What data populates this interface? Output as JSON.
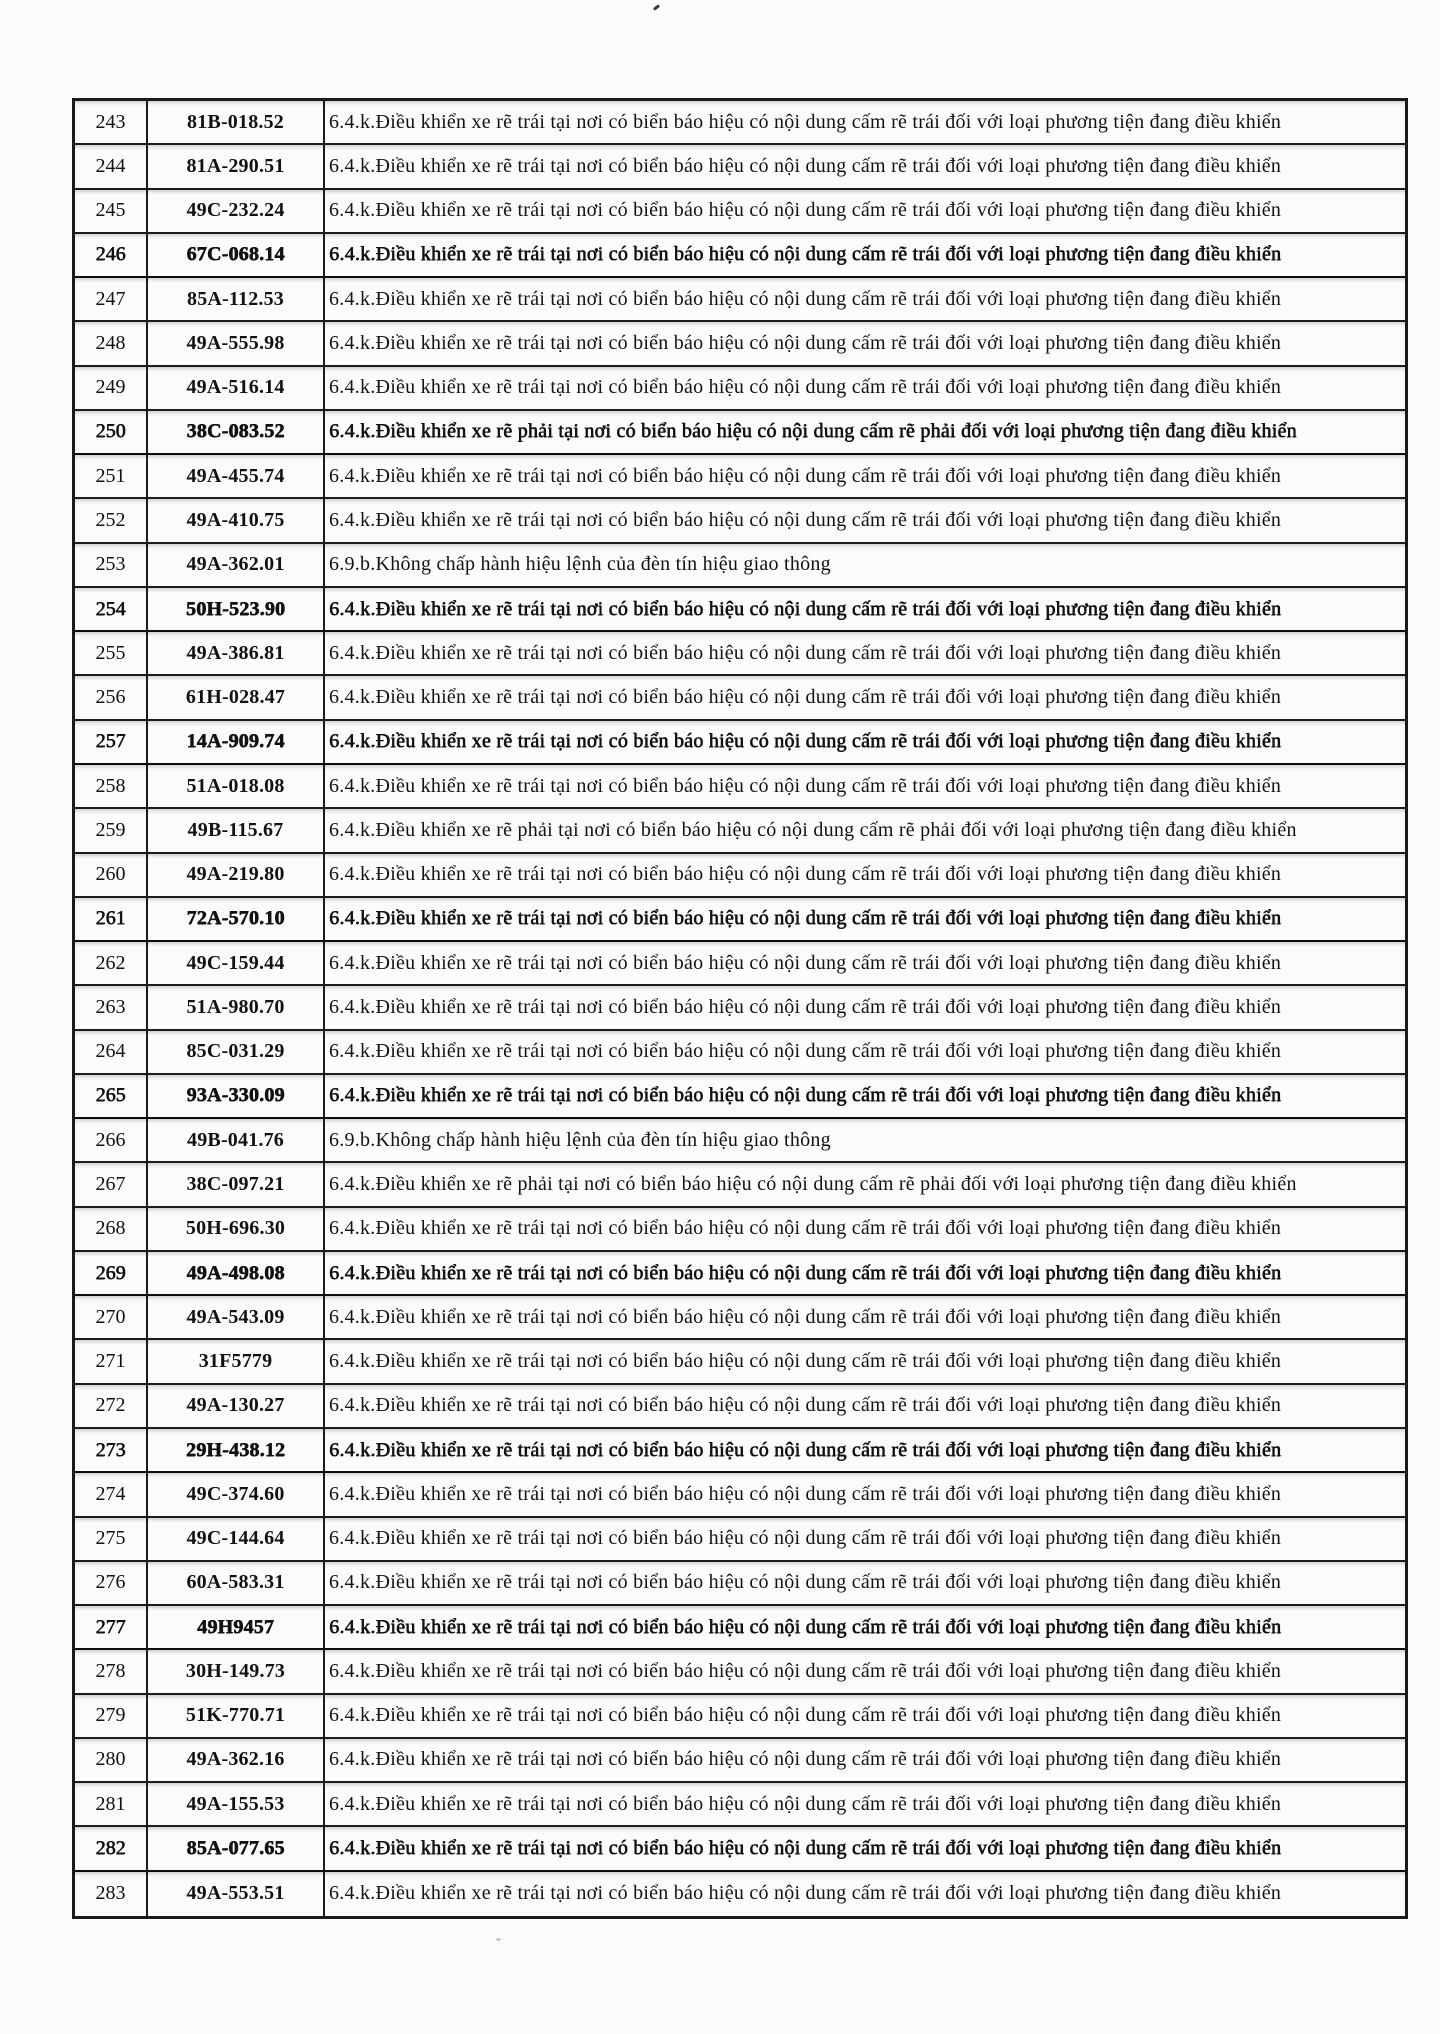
{
  "table": {
    "rows": [
      {
        "no": "243",
        "plate": "81B-018.52",
        "violation": "6.4.k.Điều khiển xe rẽ trái tại nơi có biển báo hiệu có nội dung cấm rẽ trái đối với loại phương tiện đang điều khiển",
        "heavy": false
      },
      {
        "no": "244",
        "plate": "81A-290.51",
        "violation": "6.4.k.Điều khiển xe rẽ trái tại nơi có biển báo hiệu có nội dung cấm rẽ trái đối với loại phương tiện đang điều khiển",
        "heavy": false
      },
      {
        "no": "245",
        "plate": "49C-232.24",
        "violation": "6.4.k.Điều khiển xe rẽ trái tại nơi có biển báo hiệu có nội dung cấm rẽ trái đối với loại phương tiện đang điều khiển",
        "heavy": false
      },
      {
        "no": "246",
        "plate": "67C-068.14",
        "violation": "6.4.k.Điều khiển xe rẽ trái tại nơi có biển báo hiệu có nội dung cấm rẽ trái đối với loại phương tiện đang điều khiển",
        "heavy": true
      },
      {
        "no": "247",
        "plate": "85A-112.53",
        "violation": "6.4.k.Điều khiển xe rẽ trái tại nơi có biển báo hiệu có nội dung cấm rẽ trái đối với loại phương tiện đang điều khiển",
        "heavy": false
      },
      {
        "no": "248",
        "plate": "49A-555.98",
        "violation": "6.4.k.Điều khiển xe rẽ trái tại nơi có biển báo hiệu có nội dung cấm rẽ trái đối với loại phương tiện đang điều khiển",
        "heavy": false
      },
      {
        "no": "249",
        "plate": "49A-516.14",
        "violation": "6.4.k.Điều khiển xe rẽ trái tại nơi có biển báo hiệu có nội dung cấm rẽ trái đối với loại phương tiện đang điều khiển",
        "heavy": false
      },
      {
        "no": "250",
        "plate": "38C-083.52",
        "violation": "6.4.k.Điều khiển xe rẽ phải tại nơi có biển báo hiệu có nội dung cấm rẽ phải đối với loại phương tiện đang điều khiển",
        "heavy": true
      },
      {
        "no": "251",
        "plate": "49A-455.74",
        "violation": "6.4.k.Điều khiển xe rẽ trái tại nơi có biển báo hiệu có nội dung cấm rẽ trái đối với loại phương tiện đang điều khiển",
        "heavy": false
      },
      {
        "no": "252",
        "plate": "49A-410.75",
        "violation": "6.4.k.Điều khiển xe rẽ trái tại nơi có biển báo hiệu có nội dung cấm rẽ trái đối với loại phương tiện đang điều khiển",
        "heavy": false
      },
      {
        "no": "253",
        "plate": "49A-362.01",
        "violation": "6.9.b.Không chấp hành hiệu lệnh của đèn tín hiệu giao thông",
        "heavy": false
      },
      {
        "no": "254",
        "plate": "50H-523.90",
        "violation": "6.4.k.Điều khiển xe rẽ trái tại nơi có biển báo hiệu có nội dung cấm rẽ trái đối với loại phương tiện đang điều khiển",
        "heavy": true
      },
      {
        "no": "255",
        "plate": "49A-386.81",
        "violation": "6.4.k.Điều khiển xe rẽ trái tại nơi có biển báo hiệu có nội dung cấm rẽ trái đối với loại phương tiện đang điều khiển",
        "heavy": false
      },
      {
        "no": "256",
        "plate": "61H-028.47",
        "violation": "6.4.k.Điều khiển xe rẽ trái tại nơi có biển báo hiệu có nội dung cấm rẽ trái đối với loại phương tiện đang điều khiển",
        "heavy": false
      },
      {
        "no": "257",
        "plate": "14A-909.74",
        "violation": "6.4.k.Điều khiển xe rẽ trái tại nơi có biển báo hiệu có nội dung cấm rẽ trái đối với loại phương tiện đang điều khiển",
        "heavy": true
      },
      {
        "no": "258",
        "plate": "51A-018.08",
        "violation": "6.4.k.Điều khiển xe rẽ trái tại nơi có biển báo hiệu có nội dung cấm rẽ trái đối với loại phương tiện đang điều khiển",
        "heavy": false
      },
      {
        "no": "259",
        "plate": "49B-115.67",
        "violation": "6.4.k.Điều khiển xe rẽ phải tại nơi có biển báo hiệu có nội dung cấm rẽ phải đối với loại phương tiện đang điều khiển",
        "heavy": false
      },
      {
        "no": "260",
        "plate": "49A-219.80",
        "violation": "6.4.k.Điều khiển xe rẽ trái tại nơi có biển báo hiệu có nội dung cấm rẽ trái đối với loại phương tiện đang điều khiển",
        "heavy": false
      },
      {
        "no": "261",
        "plate": "72A-570.10",
        "violation": "6.4.k.Điều khiển xe rẽ trái tại nơi có biển báo hiệu có nội dung cấm rẽ trái đối với loại phương tiện đang điều khiển",
        "heavy": true
      },
      {
        "no": "262",
        "plate": "49C-159.44",
        "violation": "6.4.k.Điều khiển xe rẽ trái tại nơi có biển báo hiệu có nội dung cấm rẽ trái đối với loại phương tiện đang điều khiển",
        "heavy": false
      },
      {
        "no": "263",
        "plate": "51A-980.70",
        "violation": "6.4.k.Điều khiển xe rẽ trái tại nơi có biển báo hiệu có nội dung cấm rẽ trái đối với loại phương tiện đang điều khiển",
        "heavy": false
      },
      {
        "no": "264",
        "plate": "85C-031.29",
        "violation": "6.4.k.Điều khiển xe rẽ trái tại nơi có biển báo hiệu có nội dung cấm rẽ trái đối với loại phương tiện đang điều khiển",
        "heavy": false
      },
      {
        "no": "265",
        "plate": "93A-330.09",
        "violation": "6.4.k.Điều khiển xe rẽ trái tại nơi có biển báo hiệu có nội dung cấm rẽ trái đối với loại phương tiện đang điều khiển",
        "heavy": true
      },
      {
        "no": "266",
        "plate": "49B-041.76",
        "violation": "6.9.b.Không chấp hành hiệu lệnh của đèn tín hiệu giao thông",
        "heavy": false
      },
      {
        "no": "267",
        "plate": "38C-097.21",
        "violation": "6.4.k.Điều khiển xe rẽ phải tại nơi có biển báo hiệu có nội dung cấm rẽ phải đối với loại phương tiện đang điều khiển",
        "heavy": false
      },
      {
        "no": "268",
        "plate": "50H-696.30",
        "violation": "6.4.k.Điều khiển xe rẽ trái tại nơi có biển báo hiệu có nội dung cấm rẽ trái đối với loại phương tiện đang điều khiển",
        "heavy": false
      },
      {
        "no": "269",
        "plate": "49A-498.08",
        "violation": "6.4.k.Điều khiển xe rẽ trái tại nơi có biển báo hiệu có nội dung cấm rẽ trái đối với loại phương tiện đang điều khiển",
        "heavy": true
      },
      {
        "no": "270",
        "plate": "49A-543.09",
        "violation": "6.4.k.Điều khiển xe rẽ trái tại nơi có biển báo hiệu có nội dung cấm rẽ trái đối với loại phương tiện đang điều khiển",
        "heavy": false
      },
      {
        "no": "271",
        "plate": "31F5779",
        "violation": "6.4.k.Điều khiển xe rẽ trái tại nơi có biển báo hiệu có nội dung cấm rẽ trái đối với loại phương tiện đang điều khiển",
        "heavy": false
      },
      {
        "no": "272",
        "plate": "49A-130.27",
        "violation": "6.4.k.Điều khiển xe rẽ trái tại nơi có biển báo hiệu có nội dung cấm rẽ trái đối với loại phương tiện đang điều khiển",
        "heavy": false
      },
      {
        "no": "273",
        "plate": "29H-438.12",
        "violation": "6.4.k.Điều khiển xe rẽ trái tại nơi có biển báo hiệu có nội dung cấm rẽ trái đối với loại phương tiện đang điều khiển",
        "heavy": true
      },
      {
        "no": "274",
        "plate": "49C-374.60",
        "violation": "6.4.k.Điều khiển xe rẽ trái tại nơi có biển báo hiệu có nội dung cấm rẽ trái đối với loại phương tiện đang điều khiển",
        "heavy": false
      },
      {
        "no": "275",
        "plate": "49C-144.64",
        "violation": "6.4.k.Điều khiển xe rẽ trái tại nơi có biển báo hiệu có nội dung cấm rẽ trái đối với loại phương tiện đang điều khiển",
        "heavy": false
      },
      {
        "no": "276",
        "plate": "60A-583.31",
        "violation": "6.4.k.Điều khiển xe rẽ trái tại nơi có biển báo hiệu có nội dung cấm rẽ trái đối với loại phương tiện đang điều khiển",
        "heavy": false
      },
      {
        "no": "277",
        "plate": "49H9457",
        "violation": "6.4.k.Điều khiển xe rẽ trái tại nơi có biển báo hiệu có nội dung cấm rẽ trái đối với loại phương tiện đang điều khiển",
        "heavy": true
      },
      {
        "no": "278",
        "plate": "30H-149.73",
        "violation": "6.4.k.Điều khiển xe rẽ trái tại nơi có biển báo hiệu có nội dung cấm rẽ trái đối với loại phương tiện đang điều khiển",
        "heavy": false
      },
      {
        "no": "279",
        "plate": "51K-770.71",
        "violation": "6.4.k.Điều khiển xe rẽ trái tại nơi có biển báo hiệu có nội dung cấm rẽ trái đối với loại phương tiện đang điều khiển",
        "heavy": false
      },
      {
        "no": "280",
        "plate": "49A-362.16",
        "violation": "6.4.k.Điều khiển xe rẽ trái tại nơi có biển báo hiệu có nội dung cấm rẽ trái đối với loại phương tiện đang điều khiển",
        "heavy": false
      },
      {
        "no": "281",
        "plate": "49A-155.53",
        "violation": "6.4.k.Điều khiển xe rẽ trái tại nơi có biển báo hiệu có nội dung cấm rẽ trái đối với loại phương tiện đang điều khiển",
        "heavy": false
      },
      {
        "no": "282",
        "plate": "85A-077.65",
        "violation": "6.4.k.Điều khiển xe rẽ trái tại nơi có biển báo hiệu có nội dung cấm rẽ trái đối với loại phương tiện đang điều khiển",
        "heavy": true
      },
      {
        "no": "283",
        "plate": "49A-553.51",
        "violation": "6.4.k.Điều khiển xe rẽ trái tại nơi có biển báo hiệu có nội dung cấm rẽ trái đối với loại phương tiện đang điều khiển",
        "heavy": false
      }
    ]
  }
}
